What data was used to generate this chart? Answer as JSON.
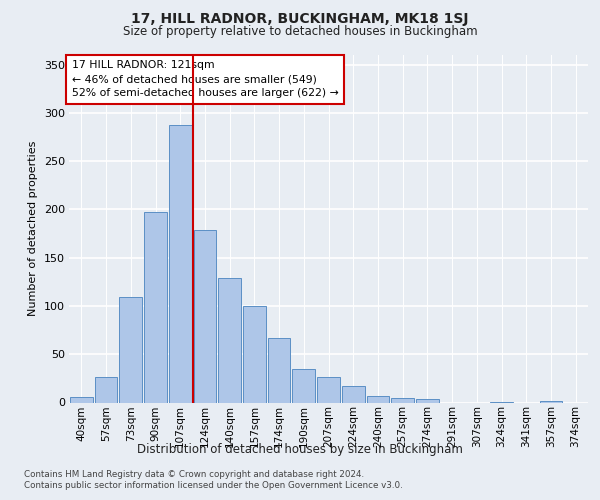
{
  "title1": "17, HILL RADNOR, BUCKINGHAM, MK18 1SJ",
  "title2": "Size of property relative to detached houses in Buckingham",
  "xlabel": "Distribution of detached houses by size in Buckingham",
  "ylabel": "Number of detached properties",
  "bar_labels": [
    "40sqm",
    "57sqm",
    "73sqm",
    "90sqm",
    "107sqm",
    "124sqm",
    "140sqm",
    "157sqm",
    "174sqm",
    "190sqm",
    "207sqm",
    "224sqm",
    "240sqm",
    "257sqm",
    "274sqm",
    "291sqm",
    "307sqm",
    "324sqm",
    "341sqm",
    "357sqm",
    "374sqm"
  ],
  "bar_values": [
    6,
    26,
    109,
    197,
    288,
    179,
    129,
    100,
    67,
    35,
    26,
    17,
    7,
    5,
    4,
    0,
    0,
    1,
    0,
    2,
    0
  ],
  "bar_color": "#aec6e8",
  "bar_edge_color": "#5b8fc5",
  "annotation_title": "17 HILL RADNOR: 121sqm",
  "annotation_line1": "← 46% of detached houses are smaller (549)",
  "annotation_line2": "52% of semi-detached houses are larger (622) →",
  "annotation_box_color": "#ffffff",
  "annotation_box_edge": "#cc0000",
  "vline_color": "#cc0000",
  "vline_x": 4.5,
  "ylim": [
    0,
    360
  ],
  "yticks": [
    0,
    50,
    100,
    150,
    200,
    250,
    300,
    350
  ],
  "footer1": "Contains HM Land Registry data © Crown copyright and database right 2024.",
  "footer2": "Contains public sector information licensed under the Open Government Licence v3.0.",
  "bg_color": "#e8edf3",
  "plot_bg_color": "#e8edf3"
}
